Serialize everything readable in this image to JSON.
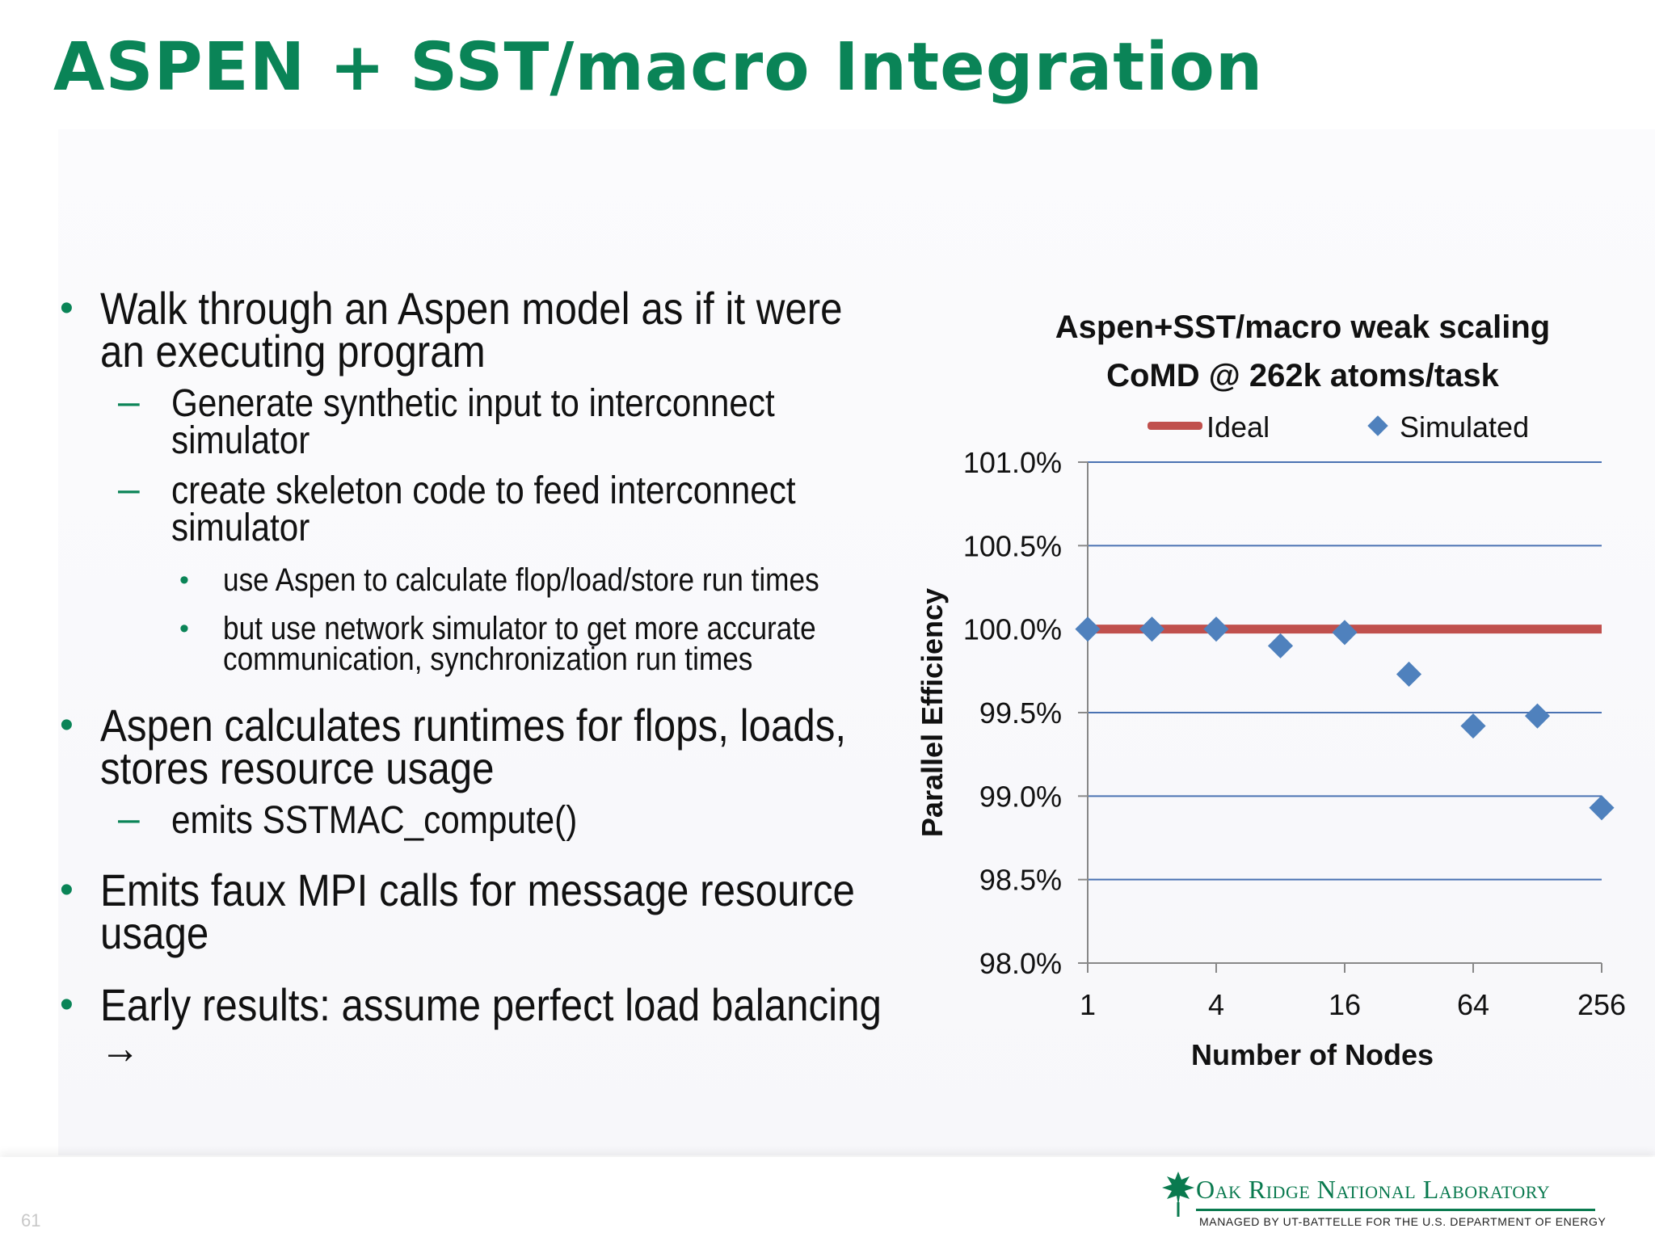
{
  "slide": {
    "title": "ASPEN + SST/macro Integration",
    "page_number": "61"
  },
  "bullets": [
    {
      "level": 1,
      "text": "Walk through an Aspen model as if it were an executing program"
    },
    {
      "level": 2,
      "text": "Generate synthetic input to interconnect simulator"
    },
    {
      "level": 2,
      "text": "create skeleton code to feed interconnect simulator"
    },
    {
      "level": 3,
      "text": "use Aspen to calculate flop/load/store run times"
    },
    {
      "level": 3,
      "text": "but use network simulator to get more accurate communication, synchronization run times"
    },
    {
      "level": 1,
      "text": "Aspen calculates runtimes for flops, loads, stores resource usage"
    },
    {
      "level": 2,
      "text": "emits SSTMAC_compute()"
    },
    {
      "level": 1,
      "text": "Emits faux MPI calls for message resource usage"
    },
    {
      "level": 1,
      "text": "Early results: assume perfect load balancing →"
    }
  ],
  "chart_data": {
    "type": "line",
    "title": "Aspen+SST/macro weak scaling",
    "subtitle": "CoMD @ 262k atoms/task",
    "xlabel": "Number of Nodes",
    "ylabel": "Parallel Efficiency",
    "x": [
      1,
      2,
      4,
      8,
      16,
      32,
      64,
      128,
      256
    ],
    "x_scale": "log2",
    "x_tick_labels": [
      "1",
      "4",
      "16",
      "64",
      "256"
    ],
    "y_tick_labels": [
      "101.0%",
      "100.5%",
      "100.0%",
      "99.5%",
      "99.0%",
      "98.5%",
      "98.0%"
    ],
    "ylim": [
      98.0,
      101.0
    ],
    "grid": true,
    "legend_position": "top",
    "series": [
      {
        "name": "Ideal",
        "kind": "line",
        "color": "#c0504d",
        "values": [
          100,
          100,
          100,
          100,
          100,
          100,
          100,
          100,
          100
        ]
      },
      {
        "name": "Simulated",
        "kind": "marker",
        "color": "#4f81bd",
        "values": [
          100.0,
          100.0,
          100.0,
          99.9,
          99.98,
          99.73,
          99.42,
          99.48,
          98.93
        ]
      }
    ]
  },
  "footer": {
    "lab_name": "Oak Ridge National Laboratory",
    "lab_tagline": "MANAGED BY UT-BATTELLE FOR THE U.S. DEPARTMENT OF ENERGY"
  }
}
